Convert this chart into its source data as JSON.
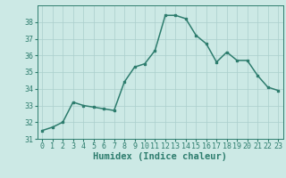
{
  "x": [
    0,
    1,
    2,
    3,
    4,
    5,
    6,
    7,
    8,
    9,
    10,
    11,
    12,
    13,
    14,
    15,
    16,
    17,
    18,
    19,
    20,
    21,
    22,
    23
  ],
  "y": [
    31.5,
    31.7,
    32.0,
    33.2,
    33.0,
    32.9,
    32.8,
    32.7,
    34.4,
    35.3,
    35.5,
    36.3,
    38.4,
    38.4,
    38.2,
    37.2,
    36.7,
    35.6,
    36.2,
    35.7,
    35.7,
    34.8,
    34.1,
    33.9
  ],
  "xlabel": "Humidex (Indice chaleur)",
  "ylim": [
    31,
    39
  ],
  "xlim": [
    -0.5,
    23.5
  ],
  "yticks": [
    31,
    32,
    33,
    34,
    35,
    36,
    37,
    38
  ],
  "xticks": [
    0,
    1,
    2,
    3,
    4,
    5,
    6,
    7,
    8,
    9,
    10,
    11,
    12,
    13,
    14,
    15,
    16,
    17,
    18,
    19,
    20,
    21,
    22,
    23
  ],
  "xtick_labels": [
    "0",
    "1",
    "2",
    "3",
    "4",
    "5",
    "6",
    "7",
    "8",
    "9",
    "10",
    "11",
    "12",
    "13",
    "14",
    "15",
    "16",
    "17",
    "18",
    "19",
    "20",
    "21",
    "22",
    "23"
  ],
  "line_color": "#2e7d6e",
  "marker": "s",
  "marker_size": 2.0,
  "line_width": 1.1,
  "bg_color": "#cce9e5",
  "grid_color": "#aacfcc",
  "tick_fontsize": 6.0,
  "xlabel_fontsize": 7.5
}
